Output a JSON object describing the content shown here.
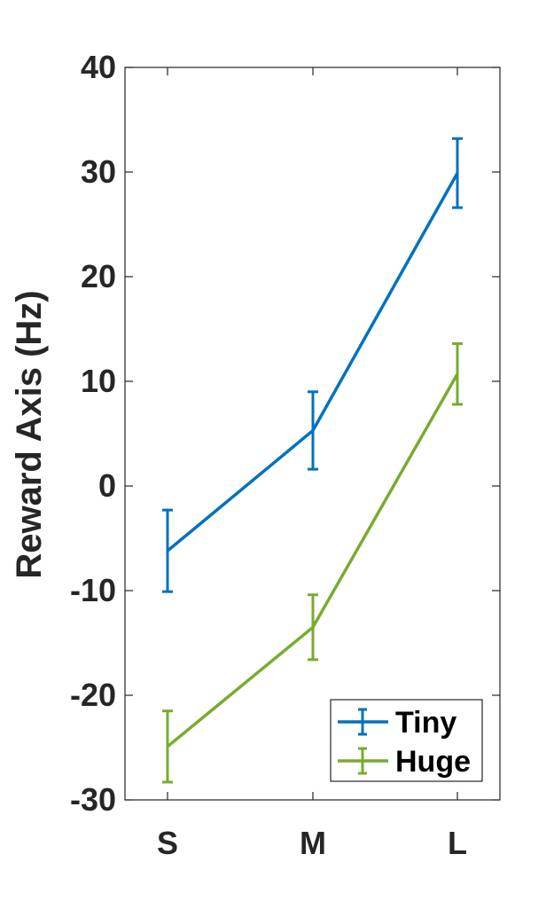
{
  "chart_data": {
    "type": "line",
    "ylabel": "Reward Axis (Hz)",
    "xlabel": "",
    "categories": [
      "S",
      "M",
      "L"
    ],
    "ylim": [
      -30,
      40
    ],
    "yticks": [
      -30,
      -20,
      -10,
      0,
      10,
      20,
      30,
      40
    ],
    "grid": false,
    "legend_position": "bottom-right",
    "series": [
      {
        "name": "Tiny",
        "color": "#0072BD",
        "values": [
          -6.2,
          5.3,
          29.9
        ],
        "error": [
          3.9,
          3.7,
          3.3
        ]
      },
      {
        "name": "Huge",
        "color": "#77AC30",
        "values": [
          -24.9,
          -13.5,
          10.7
        ],
        "error": [
          3.4,
          3.1,
          2.9
        ]
      }
    ]
  }
}
